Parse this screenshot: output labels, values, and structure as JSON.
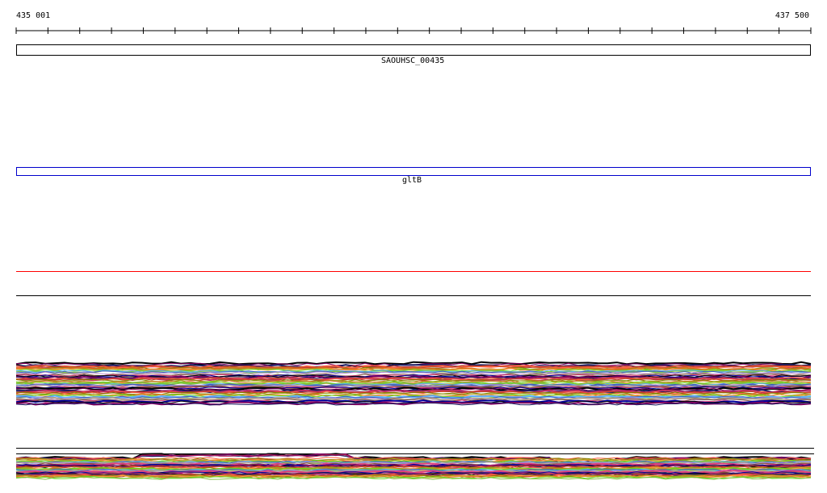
{
  "ruler": {
    "start_label": "435 001",
    "end_label": "437 500",
    "tick_count": 26
  },
  "features": [
    {
      "name": "SAOUHSC_00435",
      "color": "#000000"
    },
    {
      "name": "gltB",
      "color": "#0000cc"
    }
  ],
  "track_lines": {
    "red_line_color": "#ff0000",
    "black_line_color": "#000000"
  },
  "expression_palette": [
    "#000000",
    "#800060",
    "#1a1a60",
    "#c03060",
    "#ff6040",
    "#c04020",
    "#808000",
    "#a0a020",
    "#d07020",
    "#ffa040",
    "#60e020",
    "#80c040",
    "#60b0ff",
    "#4060c0",
    "#c090d0",
    "#b0a090",
    "#805040",
    "#e04080",
    "#0000a0"
  ]
}
